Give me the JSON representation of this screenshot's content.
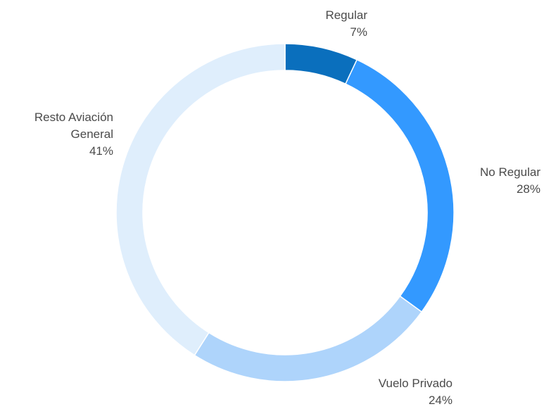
{
  "chart_data": {
    "type": "donut",
    "categories": [
      "Regular",
      "No Regular",
      "Vuelo Privado",
      "Resto Aviación General"
    ],
    "values": [
      7,
      28,
      24,
      41
    ],
    "value_labels": [
      "7%",
      "28%",
      "24%",
      "41%"
    ],
    "colors": [
      "#0a6fbd",
      "#3399ff",
      "#aed4fb",
      "#dfeefc"
    ]
  }
}
